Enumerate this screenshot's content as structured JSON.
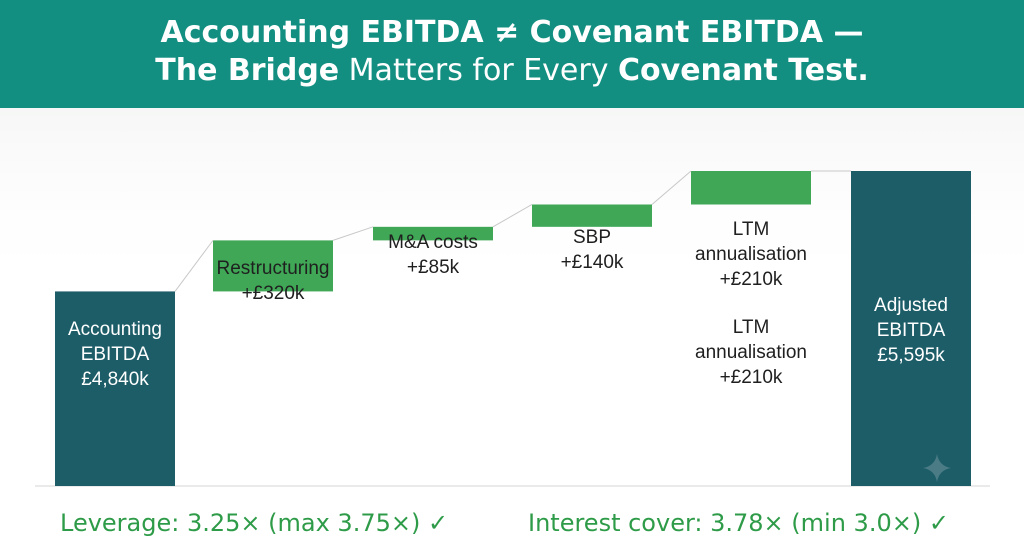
{
  "header": {
    "line1": "Accounting EBITDA ≠ Covenant EBITDA —",
    "line2_bold1": "The Bridge",
    "line2_normal": " Matters for Every ",
    "line2_bold2": "Covenant Test."
  },
  "chart_data": {
    "type": "bar",
    "subtype": "waterfall",
    "steps": [
      {
        "kind": "total",
        "value": 4840,
        "label": [
          "Accounting",
          "EBITDA",
          "£4,840k"
        ]
      },
      {
        "kind": "increase",
        "value": 320,
        "label": [
          "Restructuring",
          "+£320k"
        ]
      },
      {
        "kind": "increase",
        "value": 85,
        "label": [
          "M&A costs",
          "+£85k"
        ]
      },
      {
        "kind": "increase",
        "value": 140,
        "label": [
          "SBP",
          "+£140k"
        ]
      },
      {
        "kind": "increase",
        "value": 210,
        "label": [
          "LTM",
          "annualisation",
          "+£210k",
          "LTM",
          "annualisation",
          "+£210k"
        ]
      },
      {
        "kind": "total",
        "value": 5595,
        "label": [
          "Adjusted",
          "EBITDA",
          "£5,595k"
        ]
      }
    ],
    "colors": {
      "total": "#1d5d68",
      "increase": "#3fa756",
      "connector": "#c8c8c8"
    }
  },
  "footer": {
    "leverage": "Leverage: 3.25× (max 3.75×) ✓",
    "interest": "Interest cover: 3.78× (min 3.0×) ✓"
  },
  "icons": {
    "corner": "sparkle-icon"
  }
}
